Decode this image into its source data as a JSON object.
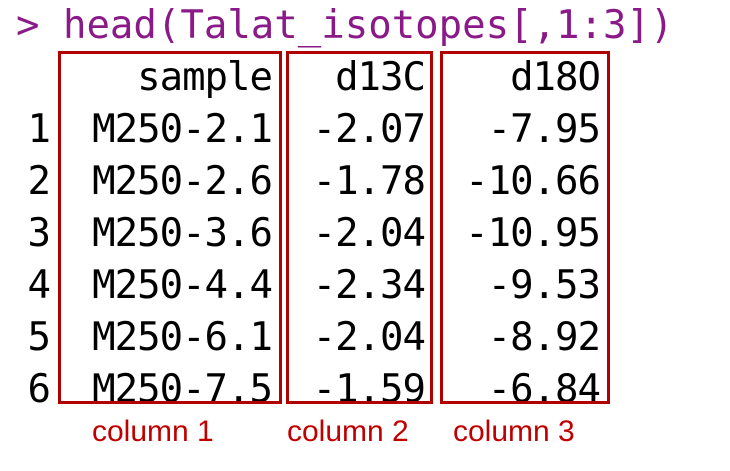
{
  "console": {
    "prompt": "> ",
    "command": "head(Talat_isotopes[,1:3])",
    "prompt_color": "#8b1a89",
    "command_color": "#8b1a89",
    "output_color": "#000000"
  },
  "table": {
    "columns": [
      "sample",
      "d13C",
      "d18O"
    ],
    "row_names": [
      "1",
      "2",
      "3",
      "4",
      "5",
      "6"
    ],
    "rows": [
      [
        "M250-2.1",
        "-2.07",
        "-7.95"
      ],
      [
        "M250-2.6",
        "-1.78",
        "-10.66"
      ],
      [
        "M250-3.6",
        "-2.04",
        "-10.95"
      ],
      [
        "M250-4.4",
        "-2.34",
        "-9.53"
      ],
      [
        "M250-6.1",
        "-2.04",
        "-8.92"
      ],
      [
        "M250-7.5",
        "-1.59",
        "-6.84"
      ]
    ]
  },
  "annotations": {
    "box_color": "#b00000",
    "caption_color": "#c00000",
    "captions": [
      "column 1",
      "column 2",
      "column 3"
    ]
  }
}
